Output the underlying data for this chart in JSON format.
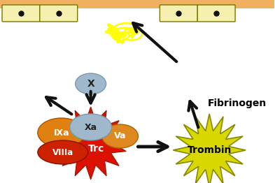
{
  "bg_color": "#ffffff",
  "vessel_bar_color": "#f0b060",
  "platelet_color": "#f5f0b0",
  "platelet_border": "#777700",
  "dot_color": "#111111",
  "fibrin_color": "#ffff00",
  "IXa_color": "#e08010",
  "VIIIa_color": "#cc2200",
  "Xa_color": "#a0b8cc",
  "Va_color": "#e08820",
  "Trc_color": "#dd1100",
  "trombin_color": "#d8d800",
  "trombin_border": "#888800",
  "X_ellipse_color": "#a0b8cc",
  "arrow_color": "#111111",
  "fibrinogen_text": "Fibrinogen",
  "trombin_text": "Trombin",
  "IXa_text": "IXa",
  "VIIIa_text": "VIIIa",
  "Xa_text": "Xa",
  "Va_text": "Va",
  "Trc_text": "Trc",
  "X_text": "X"
}
